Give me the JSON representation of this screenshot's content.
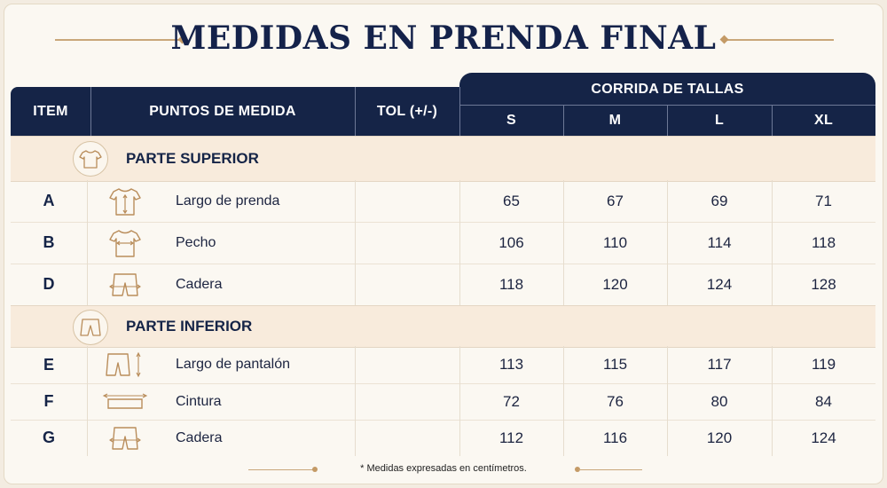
{
  "title": "MEDIDAS EN PRENDA FINAL",
  "headers": {
    "item": "ITEM",
    "points": "PUNTOS DE MEDIDA",
    "tol": "TOL (+/-)",
    "size_run": "CORRIDA DE TALLAS",
    "sizes": [
      "S",
      "M",
      "L",
      "XL"
    ]
  },
  "sections": [
    {
      "label": "PARTE SUPERIOR",
      "icon": "tshirt-icon",
      "rows": [
        {
          "item": "A",
          "name": "Largo de prenda",
          "icon": "tshirt-length-icon",
          "tol": "",
          "values": [
            "65",
            "67",
            "69",
            "71"
          ]
        },
        {
          "item": "B",
          "name": "Pecho",
          "icon": "tshirt-chest-icon",
          "tol": "",
          "values": [
            "106",
            "110",
            "114",
            "118"
          ]
        },
        {
          "item": "D",
          "name": "Cadera",
          "icon": "shorts-hip-icon",
          "tol": "",
          "values": [
            "118",
            "120",
            "124",
            "128"
          ]
        }
      ]
    },
    {
      "label": "PARTE INFERIOR",
      "icon": "shorts-icon",
      "rows": [
        {
          "item": "E",
          "name": "Largo de pantalón",
          "icon": "shorts-length-icon",
          "tol": "",
          "values": [
            "113",
            "115",
            "117",
            "119"
          ]
        },
        {
          "item": "F",
          "name": "Cintura",
          "icon": "waist-icon",
          "tol": "",
          "values": [
            "72",
            "76",
            "80",
            "84"
          ]
        },
        {
          "item": "G",
          "name": "Cadera",
          "icon": "shorts-hip-icon",
          "tol": "",
          "values": [
            "112",
            "116",
            "120",
            "124"
          ]
        }
      ]
    }
  ],
  "footnote": "* Medidas expresadas en centímetros.",
  "colors": {
    "navy": "#152447",
    "gold": "#c49a66",
    "section_bg": "#f8ebdc",
    "page_bg": "#fbf8f2"
  }
}
